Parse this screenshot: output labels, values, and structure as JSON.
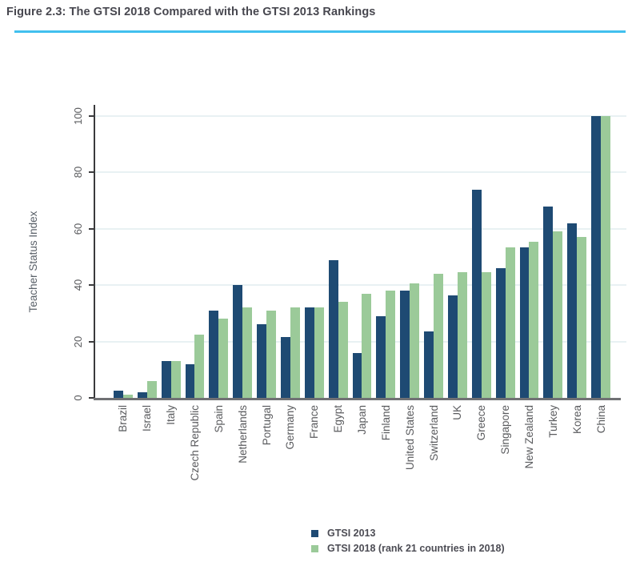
{
  "figure": {
    "title": "Figure 2.3: The GTSI 2018 Compared with the GTSI 2013 Rankings"
  },
  "colors": {
    "accent_rule": "#41C0EE",
    "gridline": "#E8F1F3",
    "y_axis": "#3A3A3C",
    "x_axis": "#707174",
    "tick": "#3A3A3C",
    "series_2013": "#1E4A73",
    "series_2018": "#9BCA99",
    "text_gray": "#5A5B5E",
    "title_text": "#47474F"
  },
  "chart_data": {
    "type": "bar",
    "title": "Figure 2.3: The GTSI 2018 Compared with the GTSI 2013 Rankings",
    "xlabel": "",
    "ylabel": "Teacher Status Index",
    "ylim": [
      0,
      100
    ],
    "yticks": [
      0,
      20,
      40,
      60,
      80,
      100
    ],
    "grid": true,
    "legend_position": "bottom-center",
    "categories": [
      "Brazil",
      "Israel",
      "Italy",
      "Czech Republic",
      "Spain",
      "Netherlands",
      "Portugal",
      "Germany",
      "France",
      "Egypt",
      "Japan",
      "Finland",
      "United States",
      "Switzerland",
      "UK",
      "Greece",
      "Singapore",
      "New Zealand",
      "Turkey",
      "Korea",
      "China"
    ],
    "series": [
      {
        "name": "GTSI 2013",
        "color": "#1E4A73",
        "values": [
          2.5,
          2,
          13,
          12,
          31,
          40,
          26,
          21.5,
          32,
          49,
          16,
          29,
          38,
          23.5,
          36.5,
          74,
          46,
          53.5,
          68,
          62,
          100
        ]
      },
      {
        "name": "GTSI 2018 (rank 21 countries in 2018)",
        "color": "#9BCA99",
        "values": [
          1,
          6,
          13,
          22.5,
          28,
          32,
          31,
          32,
          32,
          34,
          37,
          38,
          40.5,
          44,
          44.5,
          44.5,
          53.5,
          55.5,
          59,
          57,
          100
        ]
      }
    ]
  }
}
